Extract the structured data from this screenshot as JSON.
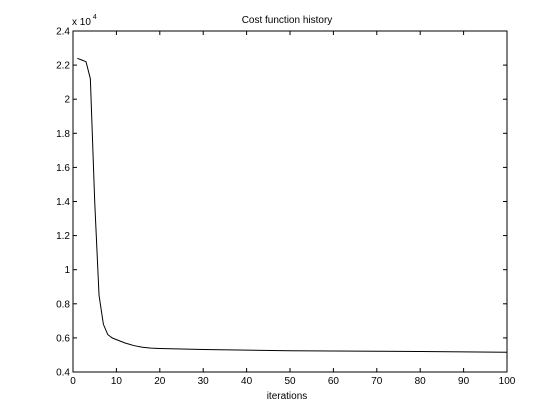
{
  "chart_data": {
    "type": "line",
    "title": "Cost function history",
    "xlabel": "iterations",
    "ylabel": "",
    "xlim": [
      0,
      100
    ],
    "ylim": [
      0.4,
      2.4
    ],
    "y_multiplier_label": "x 10",
    "y_multiplier_exponent": "4",
    "x_ticks": [
      0,
      10,
      20,
      30,
      40,
      50,
      60,
      70,
      80,
      90,
      100
    ],
    "y_ticks": [
      0.4,
      0.6,
      0.8,
      1,
      1.2,
      1.4,
      1.6,
      1.8,
      2,
      2.2,
      2.4
    ],
    "x_tick_labels": [
      "0",
      "10",
      "20",
      "30",
      "40",
      "50",
      "60",
      "70",
      "80",
      "90",
      "100"
    ],
    "y_tick_labels": [
      "0.4",
      "0.6",
      "0.8",
      "1",
      "1.2",
      "1.4",
      "1.6",
      "1.8",
      "2",
      "2.2",
      "2.4"
    ],
    "grid": false,
    "line_color": "#000000",
    "series": [
      {
        "x": [
          1,
          2,
          3,
          4,
          5,
          6,
          7,
          8,
          9,
          10,
          12,
          14,
          16,
          18,
          20,
          25,
          30,
          40,
          50,
          60,
          70,
          80,
          90,
          100
        ],
        "y": [
          2.24,
          2.23,
          2.22,
          2.12,
          1.4,
          0.85,
          0.68,
          0.62,
          0.6,
          0.59,
          0.57,
          0.555,
          0.545,
          0.54,
          0.538,
          0.535,
          0.532,
          0.528,
          0.525,
          0.523,
          0.522,
          0.52,
          0.518,
          0.516
        ]
      }
    ]
  }
}
